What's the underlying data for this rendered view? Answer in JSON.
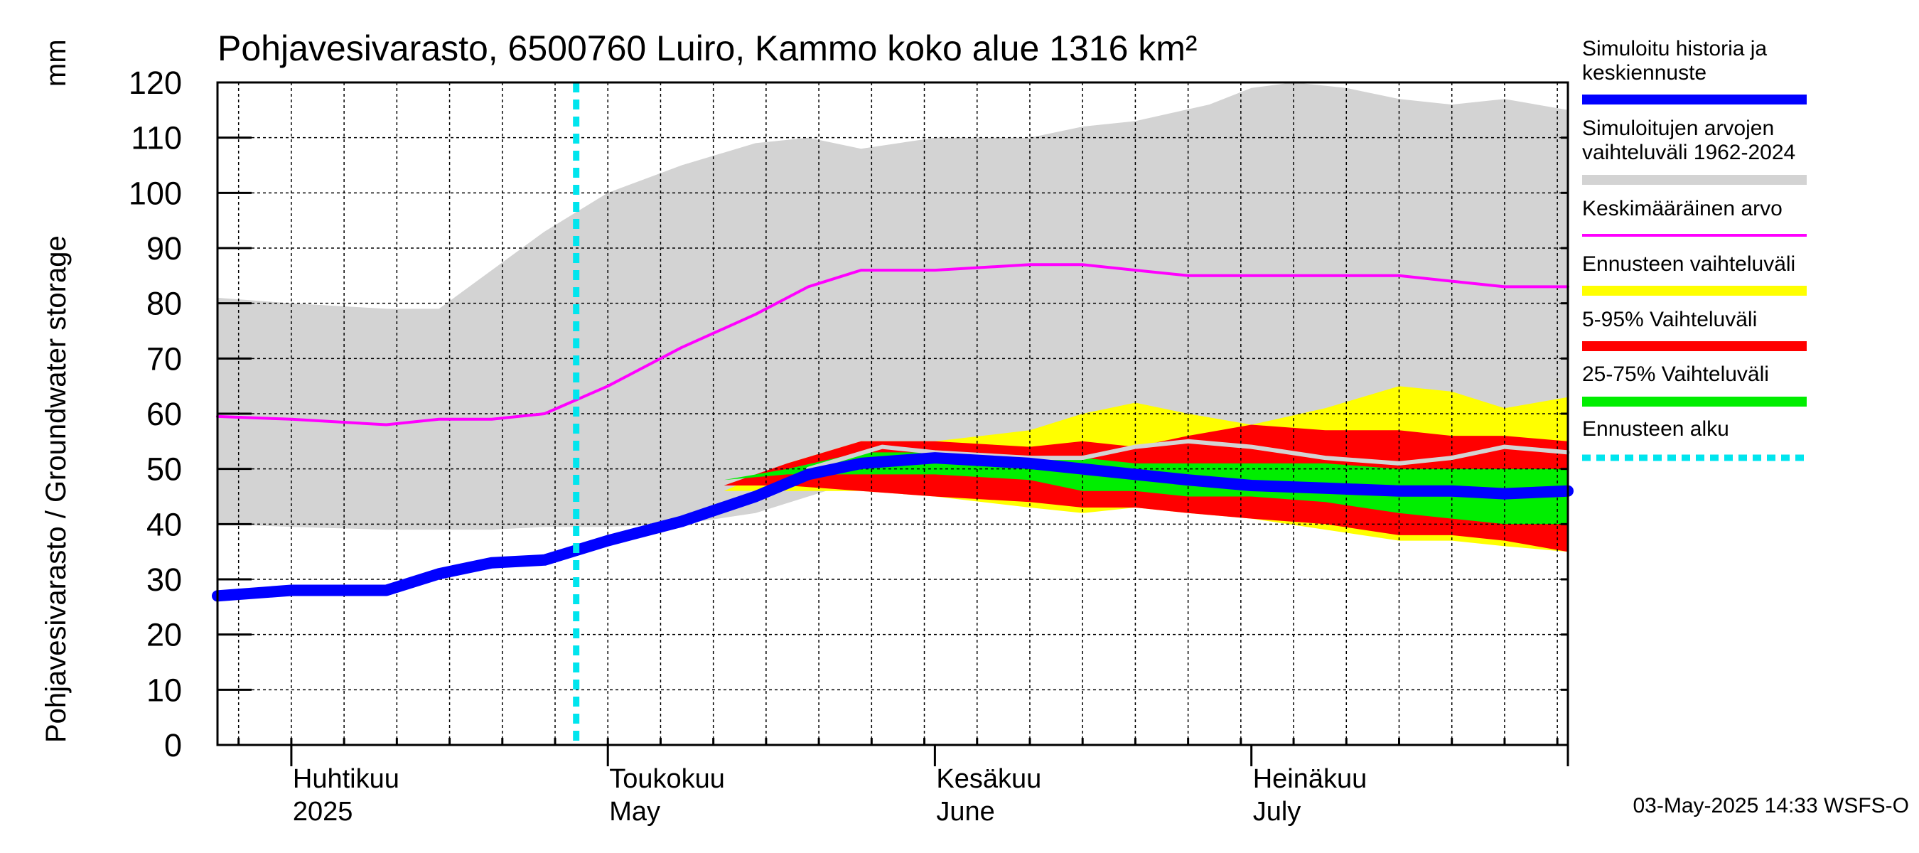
{
  "chart_data": {
    "type": "area",
    "title": "Pohjavesivarasto, 6500760 Luiro, Kammo koko alue 1316 km²",
    "ylabel": "Pohjavesivarasto / Groundwater storage",
    "yunit": "mm",
    "ylim": [
      0,
      120
    ],
    "yticks": [
      0,
      10,
      20,
      30,
      40,
      50,
      60,
      70,
      80,
      90,
      100,
      110,
      120
    ],
    "xrange": [
      "2025-03-25",
      "2025-07-31"
    ],
    "grid": true,
    "legend_position": "right",
    "month_labels": [
      {
        "date": "2025-04-01",
        "fi": "Huhtikuu",
        "en": "2025"
      },
      {
        "date": "2025-05-01",
        "fi": "Toukokuu",
        "en": "May"
      },
      {
        "date": "2025-06-01",
        "fi": "Kesäkuu",
        "en": "June"
      },
      {
        "date": "2025-07-01",
        "fi": "Heinäkuu",
        "en": "July"
      }
    ],
    "timestamp": "03-May-2025 14:33 WSFS-O",
    "forecast_start": "2025-04-28",
    "series": [
      {
        "name": "Simuloitujen arvojen vaihteluväli 1962-2024",
        "kind": "band",
        "color": "#d3d3d3",
        "x": [
          "2025-03-25",
          "2025-04-01",
          "2025-04-10",
          "2025-04-15",
          "2025-04-20",
          "2025-04-25",
          "2025-05-01",
          "2025-05-08",
          "2025-05-15",
          "2025-05-20",
          "2025-05-25",
          "2025-06-01",
          "2025-06-10",
          "2025-06-15",
          "2025-06-20",
          "2025-06-27",
          "2025-07-01",
          "2025-07-05",
          "2025-07-10",
          "2025-07-15",
          "2025-07-20",
          "2025-07-25",
          "2025-07-31"
        ],
        "upper": [
          81,
          80,
          79,
          79,
          86,
          93,
          100,
          105,
          109,
          110,
          108,
          110,
          110,
          112,
          113,
          116,
          119,
          120,
          119,
          117,
          116,
          117,
          115
        ],
        "lower": [
          40,
          39.5,
          39,
          39,
          39,
          39.5,
          39.5,
          40,
          42,
          45,
          48,
          50,
          51,
          51,
          50,
          49,
          48,
          47,
          46,
          46,
          45,
          45,
          45
        ]
      },
      {
        "name": "Ennusteen vaihteluväli",
        "kind": "band",
        "color": "#ffff00",
        "x": [
          "2025-05-12",
          "2025-05-18",
          "2025-05-25",
          "2025-06-01",
          "2025-06-10",
          "2025-06-15",
          "2025-06-20",
          "2025-06-25",
          "2025-07-01",
          "2025-07-08",
          "2025-07-15",
          "2025-07-20",
          "2025-07-25",
          "2025-07-31"
        ],
        "upper": [
          46,
          51,
          55,
          55,
          57,
          60,
          62,
          60,
          58,
          61,
          65,
          64,
          61,
          63
        ],
        "lower": [
          46,
          46,
          46,
          45,
          43,
          42,
          43,
          42,
          41,
          39,
          37,
          37,
          36,
          35
        ]
      },
      {
        "name": "5-95% Vaihteluväli",
        "kind": "band",
        "color": "#ff0000",
        "x": [
          "2025-05-12",
          "2025-05-18",
          "2025-05-25",
          "2025-06-01",
          "2025-06-10",
          "2025-06-15",
          "2025-06-20",
          "2025-06-25",
          "2025-07-01",
          "2025-07-08",
          "2025-07-15",
          "2025-07-20",
          "2025-07-25",
          "2025-07-31"
        ],
        "upper": [
          47,
          51,
          55,
          55,
          54,
          55,
          54,
          56,
          58,
          57,
          57,
          56,
          56,
          55
        ],
        "lower": [
          47,
          47,
          46,
          45,
          44,
          43,
          43,
          42,
          41,
          40,
          38,
          38,
          37,
          35
        ]
      },
      {
        "name": "25-75% Vaihteluväli",
        "kind": "band",
        "color": "#00ee00",
        "x": [
          "2025-05-12",
          "2025-05-18",
          "2025-05-25",
          "2025-06-01",
          "2025-06-10",
          "2025-06-15",
          "2025-06-20",
          "2025-06-25",
          "2025-07-01",
          "2025-07-08",
          "2025-07-15",
          "2025-07-20",
          "2025-07-25",
          "2025-07-31"
        ],
        "upper": [
          48,
          50,
          53,
          53,
          52,
          52,
          51,
          51,
          51,
          51,
          50,
          50,
          50,
          50
        ],
        "lower": [
          48,
          49,
          49,
          49,
          48,
          46,
          46,
          45,
          45,
          44,
          42,
          41,
          40,
          40
        ]
      },
      {
        "name": "Keskimääräinen arvo",
        "kind": "line",
        "color": "#ff00ff",
        "x": [
          "2025-03-25",
          "2025-04-01",
          "2025-04-10",
          "2025-04-15",
          "2025-04-20",
          "2025-04-25",
          "2025-05-01",
          "2025-05-08",
          "2025-05-15",
          "2025-05-20",
          "2025-05-25",
          "2025-06-01",
          "2025-06-10",
          "2025-06-15",
          "2025-06-20",
          "2025-06-25",
          "2025-07-01",
          "2025-07-08",
          "2025-07-15",
          "2025-07-20",
          "2025-07-25",
          "2025-07-31"
        ],
        "values": [
          59.5,
          59,
          58,
          59,
          59,
          60,
          65,
          72,
          78,
          83,
          86,
          86,
          87,
          87,
          86,
          85,
          85,
          85,
          85,
          84,
          83,
          83
        ]
      },
      {
        "name": "Simuloitu historia ja keskiennuste",
        "kind": "line",
        "color": "#0000ff",
        "x": [
          "2025-03-25",
          "2025-04-01",
          "2025-04-05",
          "2025-04-10",
          "2025-04-15",
          "2025-04-20",
          "2025-04-25",
          "2025-05-01",
          "2025-05-08",
          "2025-05-15",
          "2025-05-20",
          "2025-05-25",
          "2025-06-01",
          "2025-06-10",
          "2025-06-15",
          "2025-06-20",
          "2025-06-25",
          "2025-07-01",
          "2025-07-08",
          "2025-07-15",
          "2025-07-20",
          "2025-07-25",
          "2025-07-31"
        ],
        "values": [
          27,
          28,
          28,
          28,
          31,
          33,
          33.5,
          37,
          40.5,
          45,
          49,
          51,
          52,
          51,
          50,
          49,
          48,
          47,
          46.5,
          46,
          46,
          45.5,
          46
        ]
      },
      {
        "name": "",
        "kind": "line",
        "color": "#d3d3d3",
        "x": [
          "2025-05-20",
          "2025-05-27",
          "2025-06-01",
          "2025-06-10",
          "2025-06-15",
          "2025-06-20",
          "2025-06-25",
          "2025-07-01",
          "2025-07-08",
          "2025-07-15",
          "2025-07-20",
          "2025-07-25",
          "2025-07-31"
        ],
        "values": [
          50,
          54,
          53,
          52,
          52,
          54,
          55,
          54,
          52,
          51,
          52,
          54,
          53
        ]
      }
    ],
    "legend": [
      {
        "label": "Simuloitu historia ja keskiennuste",
        "color": "#0000ff",
        "style": "thick"
      },
      {
        "label": "Simuloitujen arvojen vaihteluväli 1962-2024",
        "color": "#d3d3d3",
        "style": "thick"
      },
      {
        "label": "Keskimääräinen arvo",
        "color": "#ff00ff",
        "style": "thin"
      },
      {
        "label": "Ennusteen vaihteluväli",
        "color": "#ffff00",
        "style": "thick"
      },
      {
        "label": "5-95% Vaihteluväli",
        "color": "#ff0000",
        "style": "thick"
      },
      {
        "label": "25-75% Vaihteluväli",
        "color": "#00ee00",
        "style": "thick"
      },
      {
        "label": "Ennusteen alku",
        "color": "#00e5ee",
        "style": "dotted"
      }
    ]
  }
}
